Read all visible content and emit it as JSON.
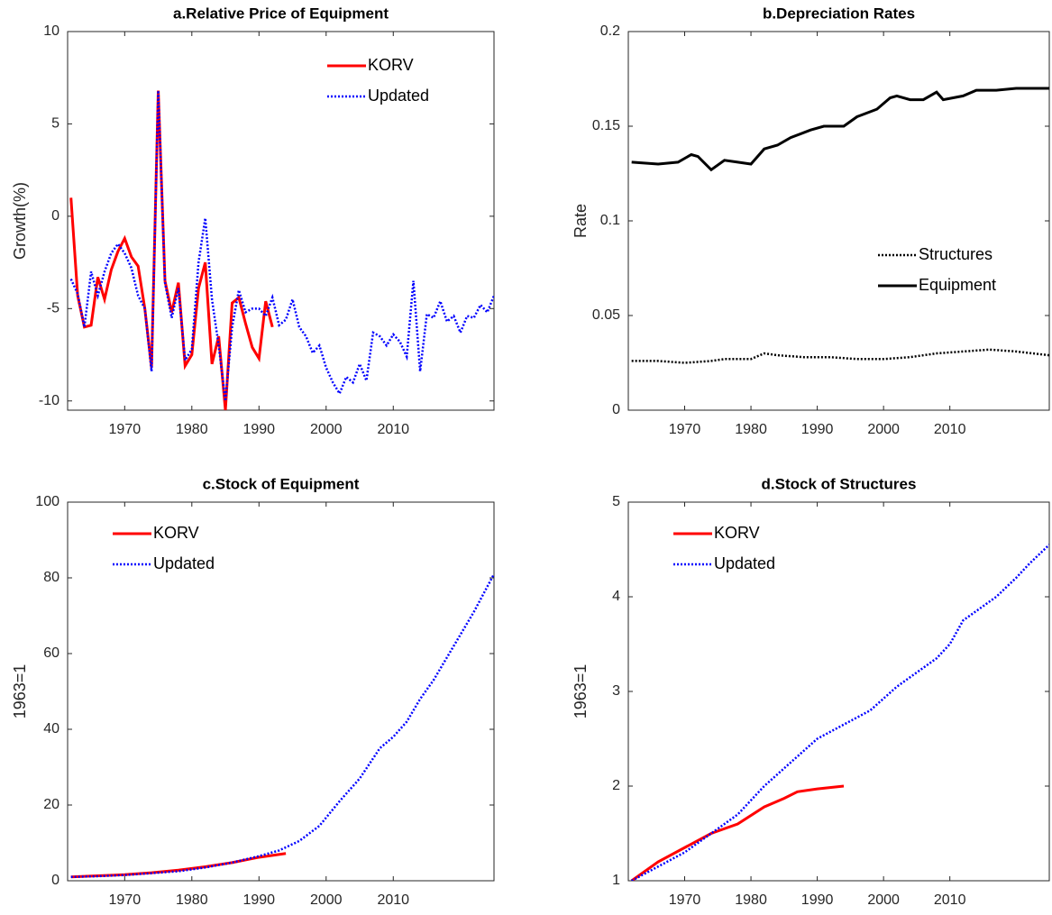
{
  "chart_data": [
    {
      "type": "line",
      "title": "a.Relative Price of Equipment",
      "ylabel": "Growth(%)",
      "xlim": [
        1961.5,
        2025
      ],
      "xticks": [
        1970,
        1980,
        1990,
        2000,
        2010
      ],
      "ylim": [
        -10.5,
        10
      ],
      "yticks": [
        -10,
        -5,
        0,
        5,
        10
      ],
      "legend": "upper right",
      "series": [
        {
          "name": "KORV",
          "color": "#ff0000",
          "line_style": "solid",
          "x": [
            1962,
            1963,
            1964,
            1965,
            1966,
            1967,
            1968,
            1969,
            1970,
            1971,
            1972,
            1973,
            1974,
            1975,
            1976,
            1977,
            1978,
            1979,
            1980,
            1981,
            1982,
            1983,
            1984,
            1985,
            1986,
            1987,
            1988,
            1989,
            1990,
            1991,
            1992
          ],
          "values": [
            1.0,
            -4.3,
            -6.0,
            -5.9,
            -3.3,
            -4.5,
            -2.9,
            -1.9,
            -1.2,
            -2.2,
            -2.7,
            -5.0,
            -8.2,
            6.8,
            -3.5,
            -5.2,
            -3.6,
            -8.1,
            -7.5,
            -3.9,
            -2.5,
            -8.0,
            -6.5,
            -10.5,
            -4.7,
            -4.4,
            -5.8,
            -7.1,
            -7.7,
            -4.6,
            -6.0
          ]
        },
        {
          "name": "Updated",
          "color": "#0000ff",
          "line_style": "dotted",
          "x": [
            1962,
            1963,
            1964,
            1965,
            1966,
            1967,
            1968,
            1969,
            1970,
            1971,
            1972,
            1973,
            1974,
            1975,
            1976,
            1977,
            1978,
            1979,
            1980,
            1981,
            1982,
            1983,
            1984,
            1985,
            1986,
            1987,
            1988,
            1989,
            1990,
            1991,
            1992,
            1993,
            1994,
            1995,
            1996,
            1997,
            1998,
            1999,
            2000,
            2001,
            2002,
            2003,
            2004,
            2005,
            2006,
            2007,
            2008,
            2009,
            2010,
            2011,
            2012,
            2013,
            2014,
            2015,
            2016,
            2017,
            2018,
            2019,
            2020,
            2021,
            2022,
            2023,
            2024,
            2025
          ],
          "values": [
            -3.4,
            -4.2,
            -6.0,
            -3.0,
            -4.3,
            -3.0,
            -2.0,
            -1.5,
            -2.0,
            -2.8,
            -4.3,
            -5.0,
            -8.4,
            6.8,
            -3.6,
            -5.5,
            -3.9,
            -7.8,
            -7.2,
            -2.5,
            -0.1,
            -4.5,
            -7.0,
            -10.0,
            -6.0,
            -4.0,
            -5.2,
            -5.0,
            -5.0,
            -5.4,
            -4.4,
            -5.9,
            -5.6,
            -4.5,
            -6.0,
            -6.5,
            -7.4,
            -7.0,
            -8.2,
            -9.0,
            -9.6,
            -8.7,
            -9.0,
            -8.0,
            -8.9,
            -6.3,
            -6.5,
            -7.0,
            -6.4,
            -6.8,
            -7.6,
            -3.5,
            -8.4,
            -5.3,
            -5.5,
            -4.6,
            -5.7,
            -5.4,
            -6.3,
            -5.4,
            -5.5,
            -4.8,
            -5.2,
            -4.3
          ]
        }
      ]
    },
    {
      "type": "line",
      "title": "b.Depreciation Rates",
      "ylabel": "Rate",
      "xlim": [
        1961.5,
        2025
      ],
      "xticks": [
        1970,
        1980,
        1990,
        2000,
        2010
      ],
      "ylim": [
        0,
        0.2
      ],
      "yticks": [
        0,
        0.05,
        0.1,
        0.15,
        0.2
      ],
      "legend": "center right",
      "series": [
        {
          "name": "Structures",
          "color": "#000000",
          "line_style": "dotted",
          "x": [
            1962,
            1966,
            1970,
            1974,
            1976,
            1980,
            1982,
            1984,
            1988,
            1992,
            1996,
            2000,
            2004,
            2008,
            2012,
            2016,
            2020,
            2025
          ],
          "values": [
            0.026,
            0.026,
            0.025,
            0.026,
            0.027,
            0.027,
            0.03,
            0.029,
            0.028,
            0.028,
            0.027,
            0.027,
            0.028,
            0.03,
            0.031,
            0.032,
            0.031,
            0.029
          ]
        },
        {
          "name": "Equipment",
          "color": "#000000",
          "line_style": "solid",
          "x": [
            1962,
            1966,
            1969,
            1971,
            1972,
            1974,
            1976,
            1978,
            1980,
            1982,
            1984,
            1986,
            1989,
            1991,
            1994,
            1996,
            1999,
            2001,
            2002,
            2004,
            2006,
            2008,
            2009,
            2012,
            2014,
            2017,
            2020,
            2025
          ],
          "values": [
            0.131,
            0.13,
            0.131,
            0.135,
            0.134,
            0.127,
            0.132,
            0.131,
            0.13,
            0.138,
            0.14,
            0.144,
            0.148,
            0.15,
            0.15,
            0.155,
            0.159,
            0.165,
            0.166,
            0.164,
            0.164,
            0.168,
            0.164,
            0.166,
            0.169,
            0.169,
            0.17,
            0.17
          ]
        }
      ]
    },
    {
      "type": "line",
      "title": "c.Stock of Equipment",
      "ylabel": "1963=1",
      "xlim": [
        1961.5,
        2025
      ],
      "xticks": [
        1970,
        1980,
        1990,
        2000,
        2010
      ],
      "ylim": [
        0,
        100
      ],
      "yticks": [
        0,
        20,
        40,
        60,
        80,
        100
      ],
      "legend": "upper left",
      "series": [
        {
          "name": "KORV",
          "color": "#ff0000",
          "line_style": "solid",
          "x": [
            1962,
            1966,
            1970,
            1974,
            1978,
            1982,
            1986,
            1990,
            1994
          ],
          "values": [
            1,
            1.3,
            1.6,
            2.1,
            2.8,
            3.7,
            4.8,
            6.2,
            7.2
          ]
        },
        {
          "name": "Updated",
          "color": "#0000ff",
          "line_style": "dotted",
          "x": [
            1962,
            1966,
            1970,
            1974,
            1978,
            1982,
            1986,
            1990,
            1993,
            1996,
            1999,
            2002,
            2005,
            2008,
            2010,
            2012,
            2014,
            2016,
            2018,
            2020,
            2022,
            2025
          ],
          "values": [
            1,
            1.2,
            1.5,
            2,
            2.5,
            3.5,
            4.8,
            6.5,
            8,
            10.5,
            14.5,
            21,
            27,
            35,
            38,
            42,
            48,
            53,
            59,
            65,
            71,
            81
          ]
        }
      ]
    },
    {
      "type": "line",
      "title": "d.Stock of Structures",
      "ylabel": "1963=1",
      "xlim": [
        1961.5,
        2025
      ],
      "xticks": [
        1970,
        1980,
        1990,
        2000,
        2010
      ],
      "ylim": [
        1,
        5
      ],
      "yticks": [
        1,
        2,
        3,
        4,
        5
      ],
      "legend": "upper left",
      "series": [
        {
          "name": "KORV",
          "color": "#ff0000",
          "line_style": "solid",
          "x": [
            1962,
            1966,
            1970,
            1974,
            1978,
            1982,
            1985,
            1987,
            1990,
            1994
          ],
          "values": [
            1.0,
            1.2,
            1.35,
            1.5,
            1.6,
            1.78,
            1.87,
            1.94,
            1.97,
            2.0
          ]
        },
        {
          "name": "Updated",
          "color": "#0000ff",
          "line_style": "dotted",
          "x": [
            1962,
            1966,
            1970,
            1974,
            1978,
            1982,
            1986,
            1990,
            1994,
            1998,
            2002,
            2004,
            2008,
            2010,
            2012,
            2014,
            2017,
            2020,
            2022,
            2025
          ],
          "values": [
            1.0,
            1.15,
            1.3,
            1.5,
            1.7,
            2.0,
            2.25,
            2.5,
            2.65,
            2.8,
            3.05,
            3.15,
            3.35,
            3.5,
            3.75,
            3.85,
            4.0,
            4.2,
            4.35,
            4.55
          ]
        }
      ]
    }
  ]
}
